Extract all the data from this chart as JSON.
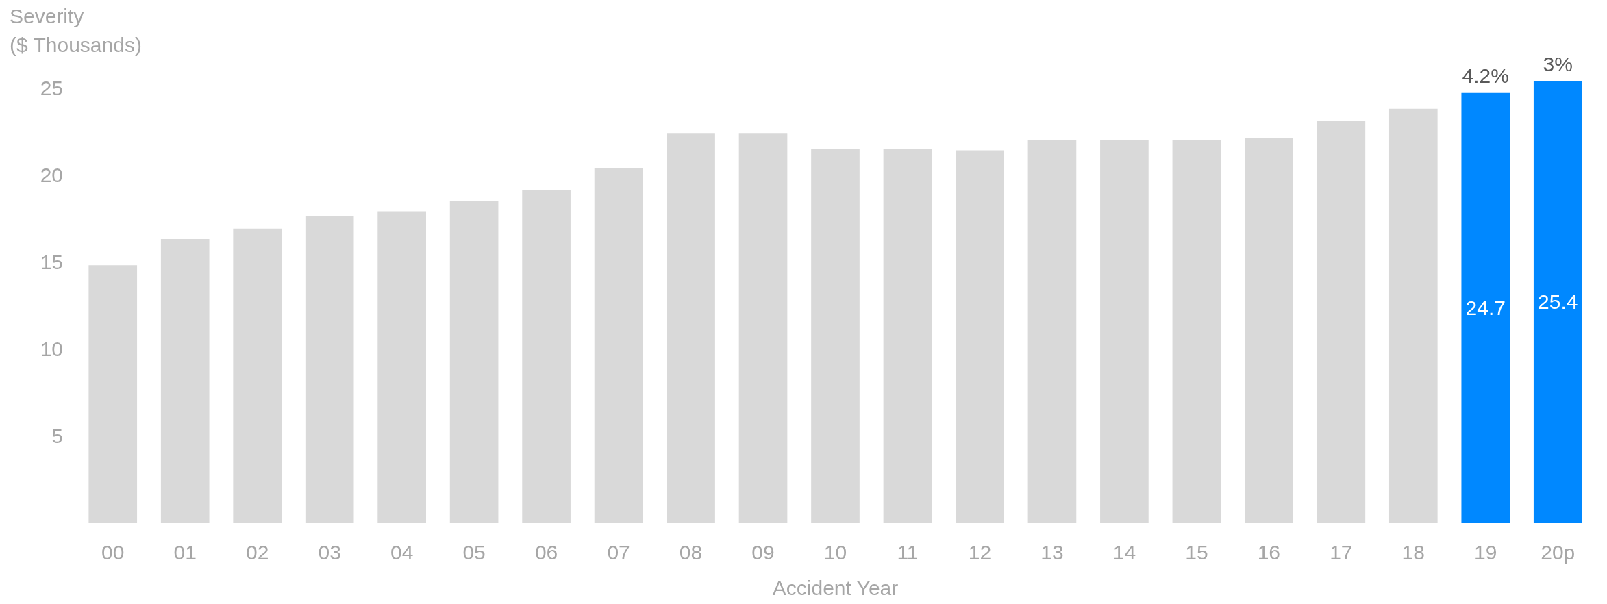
{
  "chart_data": {
    "type": "bar",
    "ylabel": "Severity\n($ Thousands)",
    "xlabel": "Accident Year",
    "categories": [
      "00",
      "01",
      "02",
      "03",
      "04",
      "05",
      "06",
      "07",
      "08",
      "09",
      "10",
      "11",
      "12",
      "13",
      "14",
      "15",
      "16",
      "17",
      "18",
      "19",
      "20p"
    ],
    "values": [
      14.8,
      16.3,
      16.9,
      17.6,
      17.9,
      18.5,
      19.1,
      20.4,
      22.4,
      22.4,
      21.5,
      21.5,
      21.4,
      22.0,
      22.0,
      22.0,
      22.1,
      23.1,
      23.8,
      24.7,
      25.4
    ],
    "colors": [
      "#d9d9d9",
      "#d9d9d9",
      "#d9d9d9",
      "#d9d9d9",
      "#d9d9d9",
      "#d9d9d9",
      "#d9d9d9",
      "#d9d9d9",
      "#d9d9d9",
      "#d9d9d9",
      "#d9d9d9",
      "#d9d9d9",
      "#d9d9d9",
      "#d9d9d9",
      "#d9d9d9",
      "#d9d9d9",
      "#d9d9d9",
      "#d9d9d9",
      "#d9d9d9",
      "#0088ff",
      "#0088ff"
    ],
    "value_labels": [
      null,
      null,
      null,
      null,
      null,
      null,
      null,
      null,
      null,
      null,
      null,
      null,
      null,
      null,
      null,
      null,
      null,
      null,
      null,
      "24.7",
      "25.4"
    ],
    "annotations": [
      {
        "text": "4.2%",
        "x": "19",
        "y": 24.7
      },
      {
        "text": "3%",
        "x": "20p",
        "y": 25.4
      }
    ],
    "ylim": [
      0,
      25.4
    ],
    "yticks": [
      5,
      10,
      15,
      20,
      25
    ],
    "grid": false
  }
}
